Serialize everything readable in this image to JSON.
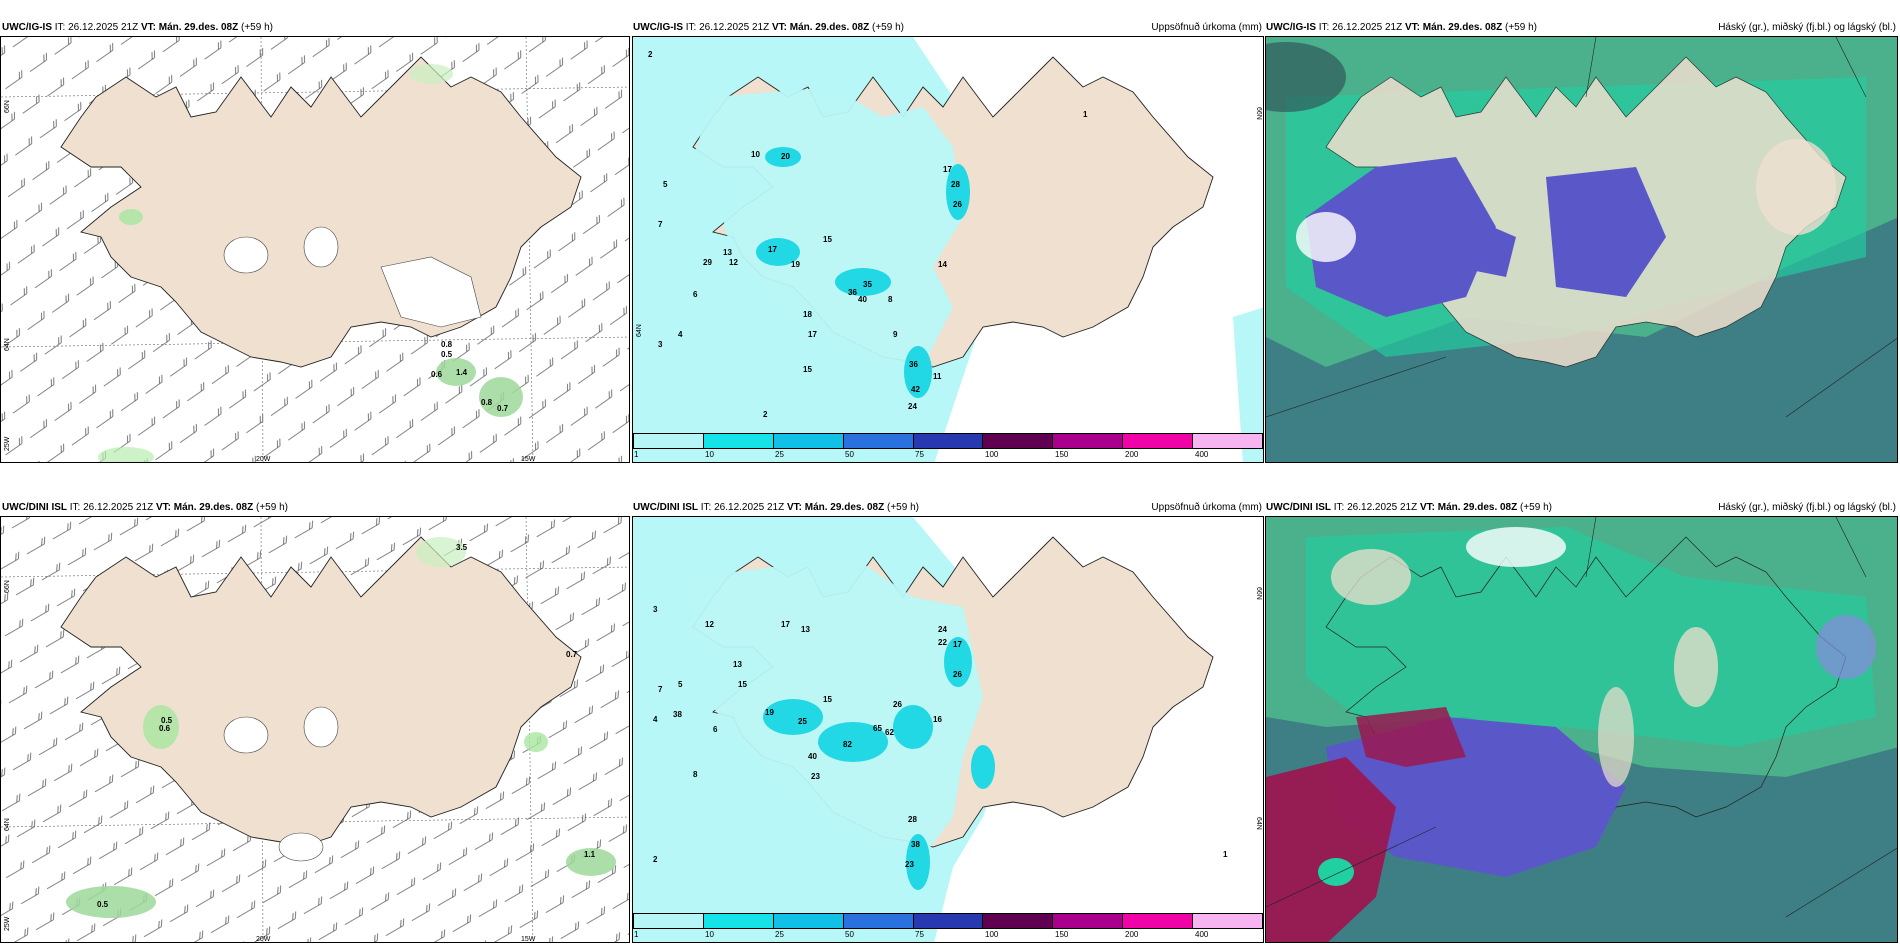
{
  "rows": [
    {
      "model": "UWC/IG-IS",
      "wind_panel": {
        "it_label": "IT:",
        "it": "26.12.2025 21Z",
        "vt_label": "VT:",
        "vt": "Mán. 29.des. 08Z",
        "lead": "(+59 h)",
        "lon_labels": [
          "20W",
          "15W"
        ],
        "lat_labels": [
          "66N",
          "64N",
          "25W"
        ],
        "values": [
          "0.5",
          "0.6",
          "1.4",
          "0.8",
          "0.7",
          "0.8"
        ]
      },
      "precip_panel": {
        "it_label": "IT:",
        "it": "26.12.2025 21Z",
        "vt_label": "VT:",
        "vt": "Mán. 29.des. 08Z",
        "lead": "(+59 h)",
        "right_title": "Uppsöfnuð úrkoma (mm)",
        "lat_label": "66N",
        "lat_label2": "64N",
        "values": [
          "2",
          "5",
          "7",
          "10",
          "20",
          "17",
          "19",
          "15",
          "36",
          "40",
          "35",
          "14",
          "26",
          "28",
          "17",
          "29",
          "13",
          "12",
          "18",
          "17",
          "15",
          "36",
          "42",
          "24",
          "11",
          "4",
          "3",
          "2",
          "1",
          "6",
          "8",
          "9"
        ]
      },
      "cloud_panel": {
        "it_label": "IT:",
        "it": "26.12.2025 21Z",
        "vt_label": "VT:",
        "vt": "Mán. 29.des. 08Z",
        "lead": "(+59 h)",
        "right_title": "Háský (gr.), miðský (fj.bl.) og lágský (bl.)"
      }
    },
    {
      "model": "UWC/DINI ISL",
      "wind_panel": {
        "it_label": "IT:",
        "it": "26.12.2025 21Z",
        "vt_label": "VT:",
        "vt": "Mán. 29.des. 08Z",
        "lead": "(+59 h)",
        "lon_labels": [
          "20W",
          "15W"
        ],
        "lat_labels": [
          "66N",
          "64N",
          "25W"
        ],
        "values": [
          "3.5",
          "0.6",
          "0.5",
          "0.5",
          "1.1",
          "0.7"
        ]
      },
      "precip_panel": {
        "it_label": "IT:",
        "it": "26.12.2025 21Z",
        "vt_label": "VT:",
        "vt": "Mán. 29.des. 08Z",
        "lead": "(+59 h)",
        "right_title": "Uppsöfnuð úrkoma (mm)",
        "lat_label": "66N",
        "lat_label2": "64N",
        "values": [
          "3",
          "12",
          "17",
          "13",
          "15",
          "25",
          "19",
          "38",
          "65",
          "62",
          "82",
          "40",
          "23",
          "26",
          "16",
          "22",
          "24",
          "17",
          "26",
          "28",
          "38",
          "23",
          "13",
          "15",
          "7",
          "4",
          "5",
          "6",
          "8",
          "2",
          "1"
        ]
      },
      "cloud_panel": {
        "it_label": "IT:",
        "it": "26.12.2025 21Z",
        "vt_label": "VT:",
        "vt": "Mán. 29.des. 08Z",
        "lead": "(+59 h)",
        "right_title": "Háský (gr.), miðský (fj.bl.) og lágský (bl.)"
      }
    }
  ],
  "colorbar": {
    "ticks": [
      "1",
      "10",
      "25",
      "50",
      "75",
      "100",
      "150",
      "200",
      "400"
    ],
    "colors": [
      "#b7f6f6",
      "#14e4e8",
      "#10c0e6",
      "#2a70de",
      "#2838b0",
      "#600050",
      "#a8008c",
      "#f004a8",
      "#f8b4f0"
    ]
  },
  "colors": {
    "land": "#efe0cf",
    "precip_light": "#b8f7f7",
    "precip_mid": "#22d8e4",
    "cloud_high": "#4bb08c",
    "cloud_mid": "#3d7f84",
    "cloud_low": "#5a58c8",
    "cloud_teal": "#20d0a0"
  }
}
